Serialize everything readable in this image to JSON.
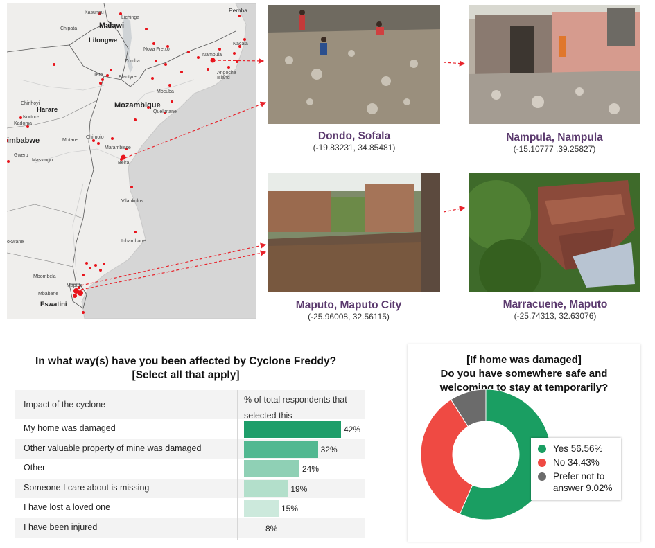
{
  "map": {
    "labels": {
      "pemba": "Pemba",
      "kasungu": "Kasungu",
      "lichinga": "Lichinga",
      "malawi": "Malawi",
      "chipata": "Chipata",
      "lilongwe": "Lilongwe",
      "nacala": "Nacala",
      "nova_freixo": "Nova Freixo",
      "nampula": "Nampula",
      "zomba": "Zomba",
      "tete": "Tete",
      "blantyre": "Blantyre",
      "angoche_island": "Angoche\nIsland",
      "mocuba": "Mocuba",
      "chinhoyi": "Chinhoyi",
      "harare": "Harare",
      "mozambique": "Mozambique",
      "quelimane": "Quelimane",
      "norton": "Norton-",
      "kadoma": "Kadoma",
      "zimbabwe": "imbabwe",
      "mutare": "Mutare",
      "chimoio": "Chimoio",
      "mafambisse": "Mafambisse",
      "gweru": "Gweru",
      "masvingo": "Masvingo",
      "beira": "Beira",
      "vilankulos": "Vilankulos",
      "inhambane": "Inhambane",
      "okwane": "okwane",
      "mbombela": "Mbombela",
      "maputo": "Maputo",
      "mbabane": "Mbabane",
      "eswatini": "Eswatini"
    }
  },
  "photos": [
    {
      "place": "Dondo, Sofala",
      "coord": "(-19.83231, 34.85481)"
    },
    {
      "place": "Nampula, Nampula",
      "coord": "(-15.10777 ,39.25827)"
    },
    {
      "place": "Maputo, Maputo City",
      "coord": "(-25.96008, 32.56115)"
    },
    {
      "place": "Marracuene, Maputo",
      "coord": "(-25.74313, 32.63076)"
    }
  ],
  "chart_data": [
    {
      "type": "bar",
      "title": "In what way(s) have you been affected by Cyclone Freddy?\n[Select all that apply]",
      "column_headers": [
        "Impact of the cyclone",
        "% of total respondents that selected this"
      ],
      "categories": [
        "My home was damaged",
        "Other valuable property of mine was damaged",
        "Other",
        "Someone I care about is missing",
        "I have lost a loved one",
        "I have been injured"
      ],
      "values": [
        42,
        32,
        24,
        19,
        15,
        8
      ],
      "value_labels": [
        "42%",
        "32%",
        "24%",
        "19%",
        "15%",
        "8%"
      ],
      "bar_colors": [
        "#1e9e6a",
        "#52b891",
        "#8fd0b5",
        "#b3dfcb",
        "#cce9dc",
        "#e6f4ee"
      ],
      "xlim": [
        0,
        100
      ]
    },
    {
      "type": "pie",
      "title": "[If home was  damaged]\nDo you have somewhere safe and\nwelcoming to stay at temporarily?",
      "legend_position": "right",
      "slices": [
        {
          "label": "Yes 56.56%",
          "value": 56.56,
          "color": "#1a9e62"
        },
        {
          "label": "No 34.43%",
          "value": 34.43,
          "color": "#ef4a43"
        },
        {
          "label": "Prefer not to\nanswer 9.02%",
          "value": 9.02,
          "color": "#6b6b6b"
        }
      ]
    }
  ]
}
